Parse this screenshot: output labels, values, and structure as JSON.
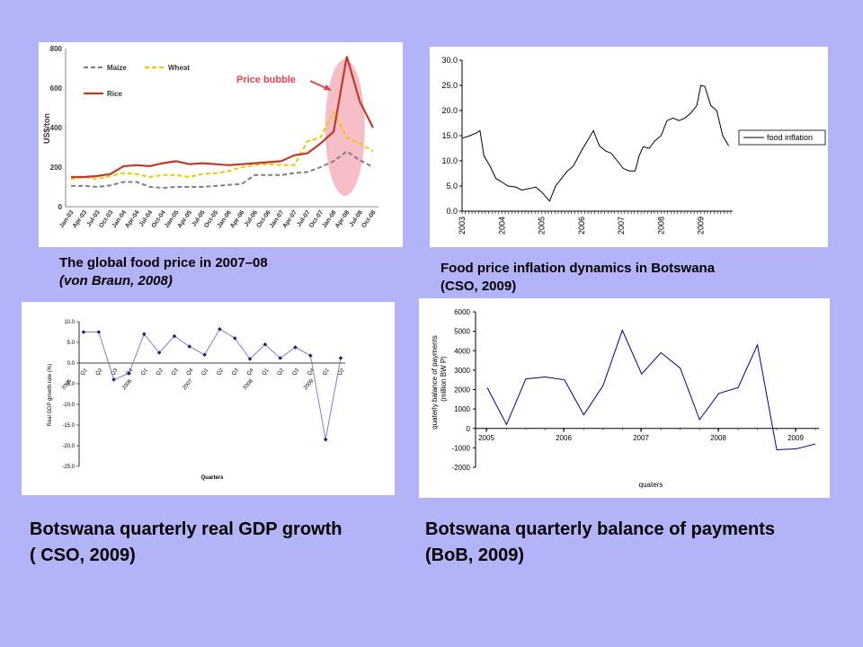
{
  "slide": {
    "background": "#b3b3f7"
  },
  "captions": {
    "food_price_line1": "The global food price in 2007–08",
    "food_price_line2": "(von Braun, 2008)",
    "inflation_line1": "Food price inflation dynamics in Botswana",
    "inflation_line2": "(CSO, 2009)",
    "gdp_line1": "Botswana quarterly real GDP growth",
    "gdp_line2": "( CSO, 2009)",
    "bop_line1": "Botswana quarterly balance of payments",
    "bop_line2": "(BoB, 2009)"
  },
  "chart_data": [
    {
      "id": "global_food_price",
      "type": "line",
      "title": "",
      "ylabel": "US$/ton",
      "ylim": [
        0,
        800
      ],
      "yticks": [
        0,
        200,
        400,
        600,
        800
      ],
      "categories": [
        "Jan-03",
        "Apr-03",
        "Jul-03",
        "Oct-03",
        "Jan-04",
        "Apr-04",
        "Jul-04",
        "Oct-04",
        "Jan-05",
        "Apr-05",
        "Jul-05",
        "Oct-05",
        "Jan-06",
        "Apr-06",
        "Jul-06",
        "Oct-06",
        "Jan-07",
        "Apr-07",
        "Jul-07",
        "Oct-07",
        "Jan-08",
        "Apr-08",
        "Jul-08",
        "Oct-08"
      ],
      "series": [
        {
          "name": "Maize",
          "color": "#808080",
          "dash": true,
          "x": [
            0,
            1,
            2,
            3,
            4,
            5,
            6,
            7,
            8,
            9,
            10,
            11,
            12,
            13,
            14,
            15,
            16,
            17,
            18,
            19,
            20,
            21,
            22,
            23
          ],
          "values": [
            105,
            105,
            100,
            108,
            125,
            125,
            100,
            95,
            100,
            100,
            100,
            105,
            110,
            115,
            160,
            160,
            160,
            170,
            175,
            200,
            230,
            280,
            235,
            200
          ]
        },
        {
          "name": "Wheat",
          "color": "#f0c800",
          "dash": true,
          "x": [
            0,
            1,
            2,
            3,
            4,
            5,
            6,
            7,
            8,
            9,
            10,
            11,
            12,
            13,
            14,
            15,
            16,
            17,
            18,
            19,
            20,
            21,
            22,
            23
          ],
          "values": [
            140,
            150,
            140,
            155,
            170,
            165,
            150,
            160,
            160,
            150,
            165,
            170,
            180,
            200,
            210,
            215,
            210,
            210,
            330,
            350,
            480,
            350,
            320,
            280
          ]
        },
        {
          "name": "Rice",
          "color": "#c0392b",
          "dash": false,
          "x": [
            0,
            1,
            2,
            3,
            4,
            5,
            6,
            7,
            8,
            9,
            10,
            11,
            12,
            13,
            14,
            15,
            16,
            17,
            18,
            19,
            20,
            21,
            22,
            23
          ],
          "values": [
            150,
            150,
            155,
            165,
            205,
            210,
            205,
            220,
            230,
            215,
            220,
            215,
            210,
            215,
            220,
            225,
            230,
            260,
            270,
            320,
            380,
            760,
            530,
            400
          ]
        }
      ],
      "annotation": "Price bubble",
      "annotation_color": "#e8404f",
      "bubble_color": "#f3a8b3"
    },
    {
      "id": "botswana_food_inflation",
      "type": "line",
      "title": "",
      "ylim": [
        0,
        30
      ],
      "yticks": [
        "0.0",
        "5.0",
        "10.0",
        "15.0",
        "20.0",
        "25.0",
        "30.0"
      ],
      "xticks": [
        "2003",
        "2004",
        "2005",
        "2006",
        "2007",
        "2008",
        "2009"
      ],
      "series": [
        {
          "name": "food inflation",
          "color": "#000000",
          "x": [
            2003.0,
            2003.2,
            2003.35,
            2003.45,
            2003.55,
            2003.7,
            2003.85,
            2004.0,
            2004.15,
            2004.35,
            2004.5,
            2004.7,
            2004.85,
            2005.0,
            2005.2,
            2005.35,
            2005.5,
            2005.65,
            2005.8,
            2006.0,
            2006.15,
            2006.3,
            2006.45,
            2006.6,
            2006.75,
            2006.9,
            2007.05,
            2007.2,
            2007.35,
            2007.45,
            2007.55,
            2007.7,
            2007.85,
            2008.0,
            2008.15,
            2008.3,
            2008.45,
            2008.6,
            2008.75,
            2008.9,
            2009.0,
            2009.1,
            2009.25,
            2009.4,
            2009.55,
            2009.7
          ],
          "values": [
            14.5,
            15,
            15.5,
            16,
            11,
            9,
            6.5,
            5.8,
            5,
            4.8,
            4.2,
            4.5,
            4.8,
            3.8,
            2,
            5,
            6.5,
            8,
            9,
            12,
            14,
            16,
            13,
            12,
            11.5,
            10,
            8.5,
            8,
            8,
            11,
            12.8,
            12.5,
            14,
            15,
            18,
            18.5,
            18,
            18.5,
            19.5,
            21,
            25,
            24.8,
            21,
            20,
            15,
            13
          ]
        }
      ]
    },
    {
      "id": "botswana_gdp_growth",
      "type": "line",
      "title": "",
      "ylabel": "Real GDP growth rate (%)",
      "xlabel": "Quarters",
      "ylim": [
        -25,
        10
      ],
      "yticks": [
        "10.0",
        "5.0",
        "0.0",
        "-5.0",
        "-10.0",
        "-15.0",
        "-20.0",
        "-25.0"
      ],
      "categories": [
        "Q1",
        "Q2",
        "Q3",
        "Q4",
        "Q1",
        "Q2",
        "Q3",
        "Q4",
        "Q1",
        "Q2",
        "Q3",
        "Q4",
        "Q1",
        "Q2",
        "Q3",
        "Q4",
        "Q1",
        "Q2"
      ],
      "years": [
        "2005",
        "2006",
        "2007",
        "2008",
        "2009"
      ],
      "series": [
        {
          "name": "",
          "color": "#4040a0",
          "values": [
            7.5,
            7.5,
            -4,
            -2.5,
            7,
            2.5,
            6.5,
            4,
            2,
            8.2,
            6,
            1,
            4.5,
            1.2,
            3.8,
            1.8,
            -18.5,
            1.2
          ]
        }
      ]
    },
    {
      "id": "botswana_balance_of_payments",
      "type": "line",
      "title": "",
      "ylabel_line1": "quaterly balance of payments",
      "ylabel_line2": "(million BW P)",
      "xlabel": "quaters",
      "ylim": [
        -2000,
        6000
      ],
      "yticks": [
        "6000",
        "5000",
        "4000",
        "3000",
        "2000",
        "1000",
        "0",
        "-1000",
        "-2000"
      ],
      "xticks": [
        "2005",
        "2006",
        "2007",
        "2008",
        "2009"
      ],
      "series": [
        {
          "name": "",
          "color": "#000080",
          "values": [
            2100,
            200,
            2550,
            2650,
            2500,
            700,
            2200,
            5050,
            2800,
            3900,
            3100,
            450,
            1800,
            2100,
            4300,
            -1100,
            -1050,
            -800
          ]
        }
      ]
    }
  ]
}
